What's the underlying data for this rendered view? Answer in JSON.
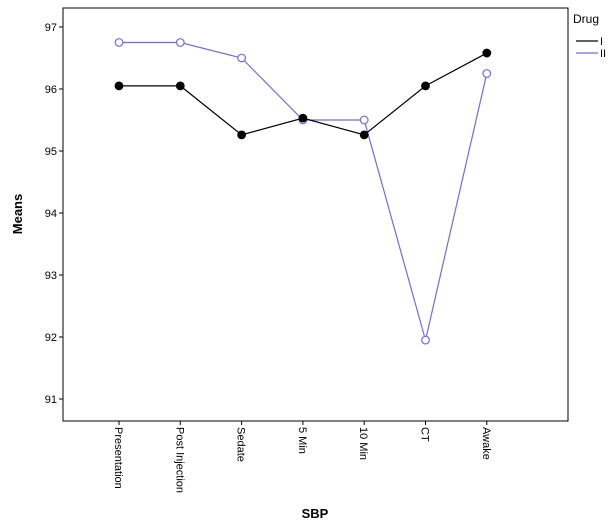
{
  "chart_data": {
    "type": "line",
    "title": "",
    "xlabel": "SBP",
    "ylabel": "Means",
    "categories": [
      "Presentation",
      "Post Injection",
      "Sedate",
      "5 Min",
      "10 Min",
      "CT",
      "Awake"
    ],
    "yticks": [
      91,
      92,
      93,
      94,
      95,
      96,
      97
    ],
    "ylim": [
      90.7,
      97.3
    ],
    "grid": false,
    "legend": {
      "title": "Drug",
      "position": "top-right"
    },
    "series": [
      {
        "name": "I",
        "color": "#000000",
        "marker": "filled-circle",
        "values": [
          96.05,
          96.05,
          95.26,
          95.53,
          95.26,
          96.05,
          96.58
        ]
      },
      {
        "name": "II",
        "color": "#6b6bf0",
        "marker": "open-circle",
        "values": [
          96.75,
          96.75,
          96.5,
          95.5,
          95.5,
          91.95,
          96.25
        ]
      }
    ]
  }
}
